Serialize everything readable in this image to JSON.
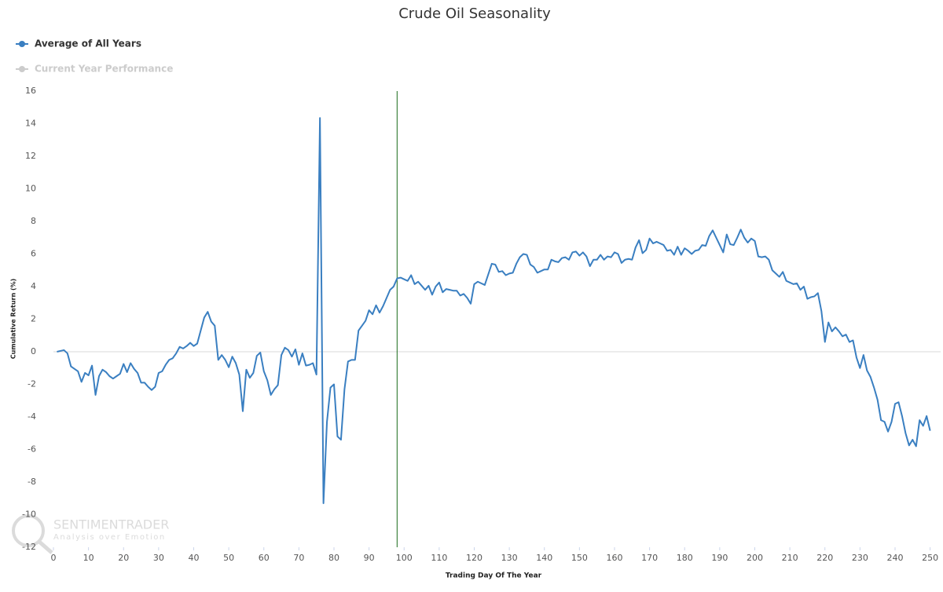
{
  "chart_data": {
    "type": "line",
    "title": "Crude Oil Seasonality",
    "xlabel": "Trading Day Of The Year",
    "ylabel": "Cumulative Return (%)",
    "watermark": {
      "name": "SENTIMENTRADER",
      "tagline": "Analysis over Emotion"
    },
    "x": [
      1,
      2,
      3,
      4,
      5,
      6,
      7,
      8,
      9,
      10,
      11,
      12,
      13,
      14,
      15,
      16,
      17,
      18,
      19,
      20,
      21,
      22,
      23,
      24,
      25,
      26,
      27,
      28,
      29,
      30,
      31,
      32,
      33,
      34,
      35,
      36,
      37,
      38,
      39,
      40,
      41,
      42,
      43,
      44,
      45,
      46,
      47,
      48,
      49,
      50,
      51,
      52,
      53,
      54,
      55,
      56,
      57,
      58,
      59,
      60,
      61,
      62,
      63,
      64,
      65,
      66,
      67,
      68,
      69,
      70,
      71,
      72,
      73,
      74,
      75,
      76,
      77,
      78,
      79,
      80,
      81,
      82,
      83,
      84,
      85,
      86,
      87,
      88,
      89,
      90,
      91,
      92,
      93,
      94,
      95,
      96,
      97,
      98,
      99,
      100,
      101,
      102,
      103,
      104,
      105,
      106,
      107,
      108,
      109,
      110,
      111,
      112,
      113,
      114,
      115,
      116,
      117,
      118,
      119,
      120,
      121,
      122,
      123,
      124,
      125,
      126,
      127,
      128,
      129,
      130,
      131,
      132,
      133,
      134,
      135,
      136,
      137,
      138,
      139,
      140,
      141,
      142,
      143,
      144,
      145,
      146,
      147,
      148,
      149,
      150,
      151,
      152,
      153,
      154,
      155,
      156,
      157,
      158,
      159,
      160,
      161,
      162,
      163,
      164,
      165,
      166,
      167,
      168,
      169,
      170,
      171,
      172,
      173,
      174,
      175,
      176,
      177,
      178,
      179,
      180,
      181,
      182,
      183,
      184,
      185,
      186,
      187,
      188,
      189,
      190,
      191,
      192,
      193,
      194,
      195,
      196,
      197,
      198,
      199,
      200,
      201,
      202,
      203,
      204,
      205,
      206,
      207,
      208,
      209,
      210,
      211,
      212,
      213,
      214,
      215,
      216,
      217,
      218,
      219,
      220,
      221,
      222,
      223,
      224,
      225,
      226,
      227,
      228,
      229,
      230,
      231,
      232,
      233,
      234,
      235,
      236,
      237,
      238,
      239,
      240,
      241,
      242,
      243,
      244,
      245,
      246,
      247,
      248,
      249,
      250
    ],
    "series": [
      {
        "name": "Average of All Years",
        "color": "#3a7fc1",
        "values": [
          0,
          0.05,
          0.1,
          -0.1,
          -0.9,
          -1.05,
          -1.2,
          -1.85,
          -1.3,
          -1.45,
          -0.85,
          -2.65,
          -1.5,
          -1.1,
          -1.25,
          -1.5,
          -1.65,
          -1.5,
          -1.35,
          -0.75,
          -1.25,
          -0.7,
          -1.05,
          -1.3,
          -1.9,
          -1.9,
          -2.15,
          -2.35,
          -2.15,
          -1.3,
          -1.2,
          -0.8,
          -0.5,
          -0.4,
          -0.1,
          0.3,
          0.2,
          0.35,
          0.55,
          0.35,
          0.5,
          1.3,
          2.1,
          2.45,
          1.85,
          1.6,
          -0.5,
          -0.2,
          -0.5,
          -0.95,
          -0.3,
          -0.7,
          -1.4,
          -3.65,
          -1.1,
          -1.6,
          -1.3,
          -0.25,
          -0.05,
          -1.2,
          -1.75,
          -2.65,
          -2.3,
          -2.05,
          -0.2,
          0.25,
          0.1,
          -0.3,
          0.15,
          -0.8,
          -0.1,
          -0.85,
          -0.8,
          -0.7,
          -1.4,
          14.35,
          -9.3,
          -4.3,
          -2.2,
          -2.0,
          -5.2,
          -5.4,
          -2.3,
          -0.6,
          -0.5,
          -0.5,
          1.3,
          1.6,
          1.9,
          2.55,
          2.3,
          2.85,
          2.4,
          2.8,
          3.3,
          3.8,
          4.0,
          4.5,
          4.55,
          4.45,
          4.35,
          4.7,
          4.15,
          4.3,
          4.05,
          3.8,
          4.05,
          3.5,
          4.0,
          4.25,
          3.65,
          3.85,
          3.8,
          3.75,
          3.75,
          3.45,
          3.55,
          3.3,
          2.95,
          4.15,
          4.3,
          4.2,
          4.1,
          4.75,
          5.4,
          5.35,
          4.9,
          4.95,
          4.7,
          4.8,
          4.85,
          5.4,
          5.8,
          6.0,
          5.95,
          5.35,
          5.2,
          4.85,
          4.95,
          5.05,
          5.05,
          5.65,
          5.55,
          5.5,
          5.75,
          5.8,
          5.65,
          6.1,
          6.15,
          5.9,
          6.1,
          5.85,
          5.25,
          5.65,
          5.65,
          5.95,
          5.65,
          5.85,
          5.8,
          6.1,
          6.0,
          5.45,
          5.65,
          5.7,
          5.65,
          6.4,
          6.85,
          6.05,
          6.25,
          6.95,
          6.65,
          6.75,
          6.65,
          6.55,
          6.2,
          6.25,
          5.95,
          6.45,
          5.95,
          6.35,
          6.2,
          6.0,
          6.2,
          6.25,
          6.55,
          6.5,
          7.1,
          7.45,
          7.0,
          6.55,
          6.1,
          7.2,
          6.6,
          6.55,
          7.0,
          7.5,
          7.0,
          6.7,
          6.95,
          6.8,
          5.85,
          5.8,
          5.85,
          5.65,
          5.0,
          4.8,
          4.6,
          4.9,
          4.35,
          4.25,
          4.15,
          4.2,
          3.8,
          4.0,
          3.25,
          3.35,
          3.4,
          3.6,
          2.5,
          0.6,
          1.8,
          1.25,
          1.5,
          1.25,
          0.95,
          1.05,
          0.6,
          0.7,
          -0.35,
          -1.0,
          -0.2,
          -1.15,
          -1.55,
          -2.2,
          -2.95,
          -4.2,
          -4.3,
          -4.9,
          -4.3,
          -3.2,
          -3.1,
          -3.95,
          -5.0,
          -5.75,
          -5.4,
          -5.8,
          -4.2,
          -4.55,
          -3.95,
          -4.85
        ]
      },
      {
        "name": "Current Year Performance",
        "color": "#cccccc",
        "visible": false
      }
    ],
    "marker_line": {
      "x": 98,
      "color": "#1a6b1a"
    },
    "zero_line": true,
    "xlim": [
      0,
      253
    ],
    "xticks": [
      0,
      10,
      20,
      30,
      40,
      50,
      60,
      70,
      80,
      90,
      100,
      110,
      120,
      130,
      140,
      150,
      160,
      170,
      180,
      190,
      200,
      210,
      220,
      230,
      240,
      250
    ],
    "ylim": [
      -12,
      16
    ],
    "yticks": [
      -12,
      -10,
      -8,
      -6,
      -4,
      -2,
      0,
      2,
      4,
      6,
      8,
      10,
      12,
      14,
      16
    ],
    "legend": "top-left"
  }
}
